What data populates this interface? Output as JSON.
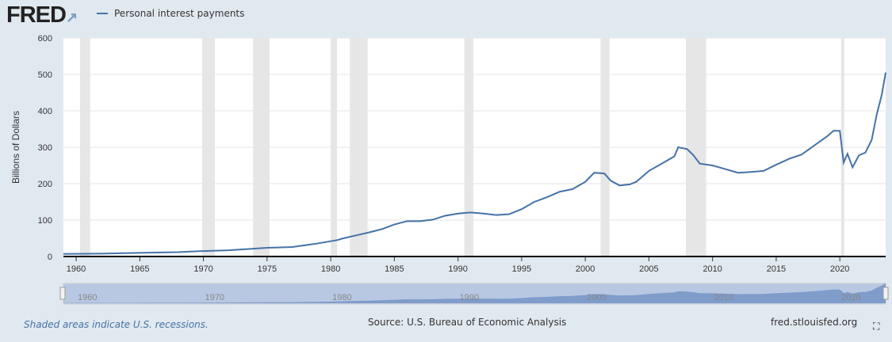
{
  "logo": "FRED",
  "footer": {
    "note": "Shaded areas indicate U.S. recessions.",
    "source": "Source: U.S. Bureau of Economic Analysis",
    "site": "fred.stlouisfed.org"
  },
  "chart_data": {
    "type": "line",
    "ylabel": "Billions of Dollars",
    "ylim": [
      0,
      600
    ],
    "xlim": [
      1959,
      2023.6
    ],
    "yticks": [
      0,
      100,
      200,
      300,
      400,
      500,
      600
    ],
    "xticks": [
      1960,
      1965,
      1970,
      1975,
      1980,
      1985,
      1990,
      1995,
      2000,
      2005,
      2010,
      2015,
      2020
    ],
    "navigator_ticks": [
      1960,
      1970,
      1980,
      1990,
      2000,
      2010,
      2020
    ],
    "grid": true,
    "legend_placement": "top-left",
    "colors": {
      "line": "#4572a7",
      "recession": "#e6e6e6"
    },
    "recessions": [
      [
        1960.3,
        1961.1
      ],
      [
        1969.9,
        1970.9
      ],
      [
        1973.9,
        1975.2
      ],
      [
        1980.0,
        1980.5
      ],
      [
        1981.5,
        1982.9
      ],
      [
        1990.5,
        1991.2
      ],
      [
        2001.2,
        2001.9
      ],
      [
        2007.9,
        2009.5
      ],
      [
        2020.1,
        2020.35
      ]
    ],
    "series": [
      {
        "name": "Personal interest payments",
        "x": [
          1959,
          1962,
          1965,
          1968,
          1970,
          1972,
          1975,
          1977,
          1978,
          1979,
          1980,
          1980.5,
          1981,
          1982,
          1983,
          1984,
          1985,
          1986,
          1987,
          1988,
          1989,
          1990,
          1991,
          1992,
          1993,
          1994,
          1995,
          1996,
          1997,
          1998,
          1999,
          2000,
          2000.7,
          2001.5,
          2002,
          2002.7,
          2003.5,
          2004,
          2005,
          2006,
          2007,
          2007.3,
          2008,
          2008.5,
          2009,
          2010,
          2011,
          2012,
          2013,
          2014,
          2015,
          2016,
          2017,
          2018,
          2019,
          2019.5,
          2020,
          2020.3,
          2020.6,
          2021,
          2021.5,
          2022,
          2022.5,
          2022.9,
          2023.3,
          2023.6
        ],
        "values": [
          7,
          8,
          10,
          12,
          15,
          17,
          24,
          26,
          31,
          36,
          42,
          45,
          50,
          58,
          66,
          75,
          88,
          97,
          97,
          101,
          112,
          118,
          121,
          118,
          114,
          116,
          130,
          150,
          163,
          178,
          185,
          205,
          230,
          228,
          208,
          195,
          198,
          205,
          235,
          255,
          275,
          300,
          295,
          278,
          255,
          250,
          240,
          230,
          232,
          235,
          252,
          268,
          280,
          305,
          330,
          345,
          345,
          258,
          282,
          245,
          278,
          285,
          320,
          390,
          445,
          505
        ]
      }
    ]
  }
}
